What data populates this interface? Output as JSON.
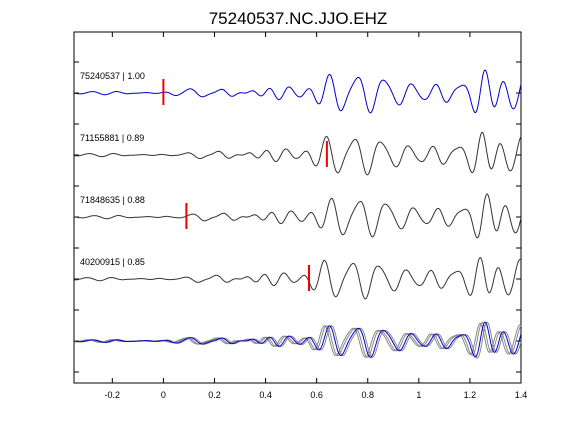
{
  "chart_data": {
    "type": "line",
    "title": "75240537.NC.JJO.EHZ",
    "xlabel": "",
    "ylabel": "",
    "xlim": [
      -0.35,
      1.4
    ],
    "xticks": [
      -0.2,
      0,
      0.2,
      0.4,
      0.6,
      0.8,
      1,
      1.2,
      1.4
    ],
    "xtick_labels": [
      "-0.2",
      "0",
      "0.2",
      "0.4",
      "0.6",
      "0.8",
      "1",
      "1.2",
      "1.4"
    ],
    "grid": false,
    "colors": {
      "master": "#0000cc",
      "other": "#333333",
      "stack_other": "#888888",
      "pick": "#ee0000"
    },
    "traces": [
      {
        "label": "75240537 | 1.00",
        "pick": 0.0,
        "color": "#0000cc"
      },
      {
        "label": "71155881 | 0.89",
        "pick": 0.64,
        "color": "#333333"
      },
      {
        "label": "71848635 | 0.88",
        "pick": 0.09,
        "color": "#333333"
      },
      {
        "label": "40200915 | 0.85",
        "pick": 0.57,
        "color": "#333333"
      }
    ]
  }
}
